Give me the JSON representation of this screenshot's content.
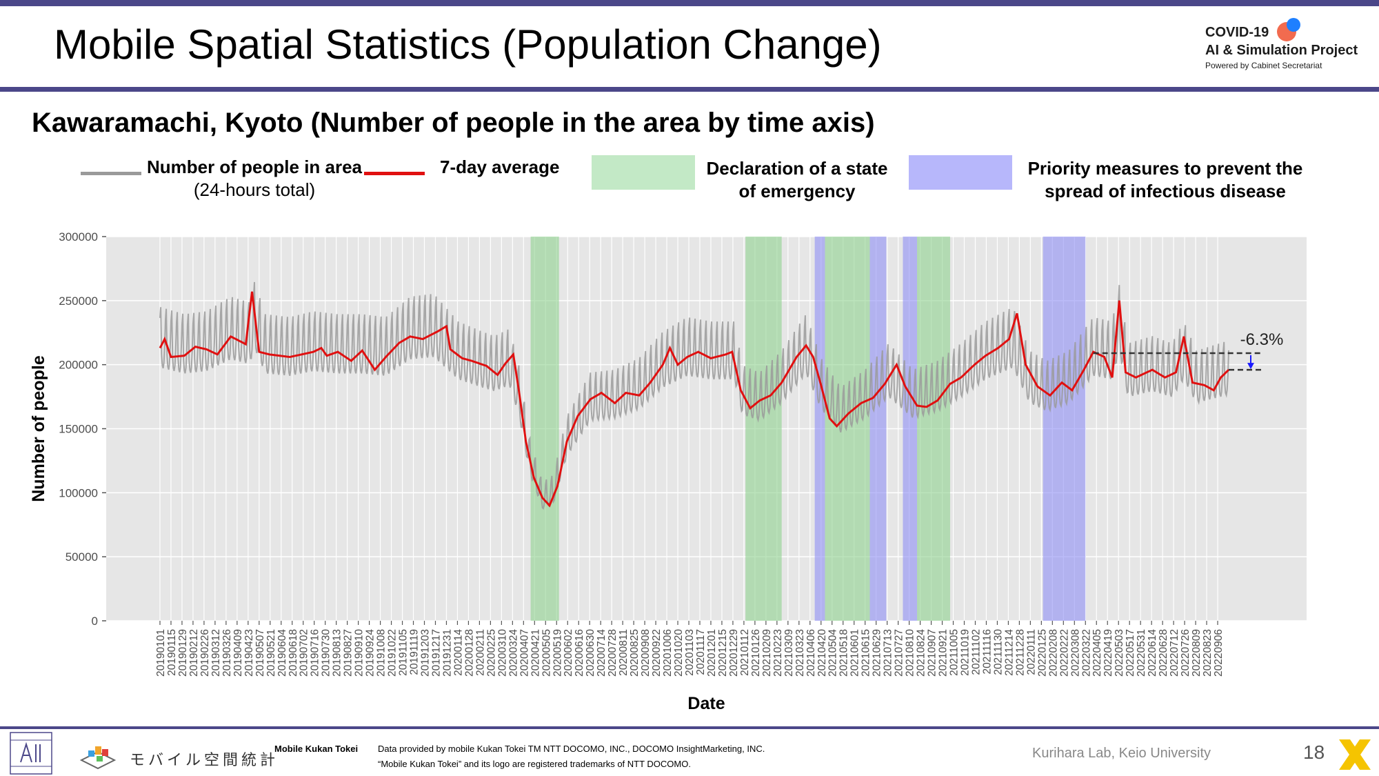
{
  "header": {
    "title": "Mobile Spatial Statistics (Population Change)",
    "logo": {
      "line1": "COVID-19",
      "line2": "AI & Simulation Project",
      "line3": "Powered by Cabinet Secretariat"
    }
  },
  "subtitle": "Kawaramachi, Kyoto (Number of people in the area by time axis)",
  "legend": {
    "people": {
      "line1": "Number of people in area",
      "line2": "(24-hours total)"
    },
    "avg": "7-day average",
    "emergency": {
      "line1": "Declaration of a state",
      "line2": "of emergency"
    },
    "priority": {
      "line1": "Priority measures to prevent the",
      "line2": "spread of infectious disease"
    }
  },
  "colors": {
    "daily": "#9a9a9a",
    "avg": "#e01010",
    "emergency": "#8fd28f",
    "priority": "#8f8ff5",
    "plot_bg": "#e6e6e6",
    "header_bar": "#4b4789"
  },
  "chart_data": {
    "type": "line",
    "xlabel": "Date",
    "ylabel": "Number of people",
    "ylim": [
      0,
      300000
    ],
    "yticks": [
      0,
      50000,
      100000,
      150000,
      200000,
      250000,
      300000
    ],
    "ytick_labels": [
      "0",
      "50000",
      "100000",
      "150000",
      "200000",
      "250000",
      "300000"
    ],
    "x_start": "2019-01-01",
    "x_end": "2022-09-20",
    "xtick_labels": [
      "20190101",
      "20190115",
      "20190129",
      "20190212",
      "20190226",
      "20190312",
      "20190326",
      "20190409",
      "20190423",
      "20190507",
      "20190521",
      "20190604",
      "20190618",
      "20190702",
      "20190716",
      "20190730",
      "20190813",
      "20190827",
      "20190910",
      "20190924",
      "20191008",
      "20191022",
      "20191105",
      "20191119",
      "20191203",
      "20191217",
      "20191231",
      "20200114",
      "20200128",
      "20200211",
      "20200225",
      "20200310",
      "20200324",
      "20200407",
      "20200421",
      "20200505",
      "20200519",
      "20200602",
      "20200616",
      "20200630",
      "20200714",
      "20200728",
      "20200811",
      "20200825",
      "20200908",
      "20200922",
      "20201006",
      "20201020",
      "20201103",
      "20201117",
      "20201201",
      "20201215",
      "20201229",
      "20210112",
      "20210126",
      "20210209",
      "20210223",
      "20210309",
      "20210323",
      "20210406",
      "20210420",
      "20210504",
      "20210518",
      "20210601",
      "20210615",
      "20210629",
      "20210713",
      "20210727",
      "20210810",
      "20210824",
      "20210907",
      "20210921",
      "20211005",
      "20211019",
      "20211102",
      "20211116",
      "20211130",
      "20211214",
      "20211228",
      "20220111",
      "20220125",
      "20220208",
      "20220222",
      "20220308",
      "20220322",
      "20220405",
      "20220419",
      "20220503",
      "20220517",
      "20220531",
      "20220614",
      "20220628",
      "20220712",
      "20220726",
      "20220809",
      "20220823",
      "20220906"
    ],
    "series": [
      {
        "name": "Number of people in area (24-hours total)",
        "kind": "daily",
        "anchors": [
          [
            "2019-01-01",
            215000
          ],
          [
            "2019-02-01",
            210000
          ],
          [
            "2019-03-01",
            212000
          ],
          [
            "2019-04-01",
            222000
          ],
          [
            "2019-04-25",
            218000
          ],
          [
            "2019-05-01",
            232000
          ],
          [
            "2019-05-15",
            210000
          ],
          [
            "2019-06-15",
            208000
          ],
          [
            "2019-07-15",
            212000
          ],
          [
            "2019-08-15",
            210000
          ],
          [
            "2019-09-15",
            210000
          ],
          [
            "2019-10-15",
            208000
          ],
          [
            "2019-11-15",
            222000
          ],
          [
            "2019-12-15",
            224000
          ],
          [
            "2020-01-15",
            205000
          ],
          [
            "2020-02-15",
            198000
          ],
          [
            "2020-03-01",
            195000
          ],
          [
            "2020-03-20",
            200000
          ],
          [
            "2020-04-01",
            175000
          ],
          [
            "2020-04-15",
            125000
          ],
          [
            "2020-05-01",
            95000
          ],
          [
            "2020-05-15",
            100000
          ],
          [
            "2020-06-01",
            140000
          ],
          [
            "2020-07-01",
            170000
          ],
          [
            "2020-08-01",
            172000
          ],
          [
            "2020-09-01",
            180000
          ],
          [
            "2020-10-01",
            198000
          ],
          [
            "2020-11-01",
            208000
          ],
          [
            "2020-12-01",
            205000
          ],
          [
            "2020-12-31",
            205000
          ],
          [
            "2021-01-10",
            175000
          ],
          [
            "2021-02-01",
            170000
          ],
          [
            "2021-03-01",
            185000
          ],
          [
            "2021-04-01",
            210000
          ],
          [
            "2021-04-20",
            180000
          ],
          [
            "2021-05-15",
            160000
          ],
          [
            "2021-06-15",
            172000
          ],
          [
            "2021-07-15",
            190000
          ],
          [
            "2021-08-15",
            172000
          ],
          [
            "2021-09-15",
            178000
          ],
          [
            "2021-10-15",
            190000
          ],
          [
            "2021-11-15",
            205000
          ],
          [
            "2021-12-20",
            215000
          ],
          [
            "2022-01-10",
            185000
          ],
          [
            "2022-02-01",
            178000
          ],
          [
            "2022-03-01",
            185000
          ],
          [
            "2022-04-01",
            208000
          ],
          [
            "2022-04-25",
            205000
          ],
          [
            "2022-05-04",
            230000
          ],
          [
            "2022-05-15",
            190000
          ],
          [
            "2022-06-15",
            195000
          ],
          [
            "2022-07-10",
            190000
          ],
          [
            "2022-07-25",
            205000
          ],
          [
            "2022-08-10",
            185000
          ],
          [
            "2022-09-20",
            192000
          ]
        ]
      },
      {
        "name": "7-day average",
        "kind": "avg",
        "anchors": [
          [
            "2019-01-01",
            213000
          ],
          [
            "2019-01-07",
            220000
          ],
          [
            "2019-01-15",
            206000
          ],
          [
            "2019-02-01",
            207000
          ],
          [
            "2019-02-15",
            214000
          ],
          [
            "2019-03-01",
            212000
          ],
          [
            "2019-03-15",
            208000
          ],
          [
            "2019-04-01",
            222000
          ],
          [
            "2019-04-20",
            216000
          ],
          [
            "2019-04-28",
            257000
          ],
          [
            "2019-05-07",
            210000
          ],
          [
            "2019-05-20",
            208000
          ],
          [
            "2019-06-15",
            206000
          ],
          [
            "2019-07-15",
            210000
          ],
          [
            "2019-07-25",
            213000
          ],
          [
            "2019-08-01",
            207000
          ],
          [
            "2019-08-15",
            210000
          ],
          [
            "2019-09-01",
            203000
          ],
          [
            "2019-09-15",
            211000
          ],
          [
            "2019-10-01",
            196000
          ],
          [
            "2019-10-15",
            206000
          ],
          [
            "2019-11-01",
            217000
          ],
          [
            "2019-11-15",
            222000
          ],
          [
            "2019-12-01",
            220000
          ],
          [
            "2019-12-20",
            226000
          ],
          [
            "2019-12-31",
            230000
          ],
          [
            "2020-01-05",
            212000
          ],
          [
            "2020-01-20",
            205000
          ],
          [
            "2020-02-01",
            203000
          ],
          [
            "2020-02-20",
            199000
          ],
          [
            "2020-03-05",
            192000
          ],
          [
            "2020-03-15",
            201000
          ],
          [
            "2020-03-25",
            208000
          ],
          [
            "2020-04-01",
            180000
          ],
          [
            "2020-04-10",
            140000
          ],
          [
            "2020-04-20",
            112000
          ],
          [
            "2020-05-01",
            96000
          ],
          [
            "2020-05-10",
            90000
          ],
          [
            "2020-05-20",
            105000
          ],
          [
            "2020-06-01",
            140000
          ],
          [
            "2020-06-15",
            160000
          ],
          [
            "2020-07-01",
            173000
          ],
          [
            "2020-07-15",
            178000
          ],
          [
            "2020-08-01",
            170000
          ],
          [
            "2020-08-15",
            178000
          ],
          [
            "2020-09-01",
            176000
          ],
          [
            "2020-09-15",
            186000
          ],
          [
            "2020-10-01",
            200000
          ],
          [
            "2020-10-10",
            213000
          ],
          [
            "2020-10-20",
            200000
          ],
          [
            "2020-11-01",
            206000
          ],
          [
            "2020-11-15",
            210000
          ],
          [
            "2020-12-01",
            205000
          ],
          [
            "2020-12-20",
            208000
          ],
          [
            "2020-12-28",
            210000
          ],
          [
            "2021-01-08",
            180000
          ],
          [
            "2021-01-20",
            166000
          ],
          [
            "2021-02-01",
            172000
          ],
          [
            "2021-02-15",
            176000
          ],
          [
            "2021-03-01",
            186000
          ],
          [
            "2021-03-20",
            206000
          ],
          [
            "2021-04-01",
            215000
          ],
          [
            "2021-04-10",
            206000
          ],
          [
            "2021-04-20",
            184000
          ],
          [
            "2021-05-01",
            158000
          ],
          [
            "2021-05-10",
            152000
          ],
          [
            "2021-05-25",
            162000
          ],
          [
            "2021-06-10",
            170000
          ],
          [
            "2021-06-25",
            174000
          ],
          [
            "2021-07-10",
            185000
          ],
          [
            "2021-07-25",
            200000
          ],
          [
            "2021-08-05",
            183000
          ],
          [
            "2021-08-20",
            168000
          ],
          [
            "2021-09-01",
            167000
          ],
          [
            "2021-09-15",
            172000
          ],
          [
            "2021-10-01",
            185000
          ],
          [
            "2021-10-15",
            190000
          ],
          [
            "2021-11-01",
            200000
          ],
          [
            "2021-11-15",
            207000
          ],
          [
            "2021-12-01",
            213000
          ],
          [
            "2021-12-15",
            220000
          ],
          [
            "2021-12-25",
            240000
          ],
          [
            "2022-01-05",
            200000
          ],
          [
            "2022-01-20",
            183000
          ],
          [
            "2022-02-05",
            176000
          ],
          [
            "2022-02-20",
            186000
          ],
          [
            "2022-03-05",
            180000
          ],
          [
            "2022-03-20",
            196000
          ],
          [
            "2022-04-01",
            210000
          ],
          [
            "2022-04-15",
            206000
          ],
          [
            "2022-04-25",
            190000
          ],
          [
            "2022-05-04",
            250000
          ],
          [
            "2022-05-12",
            194000
          ],
          [
            "2022-05-25",
            190000
          ],
          [
            "2022-06-15",
            196000
          ],
          [
            "2022-07-01",
            190000
          ],
          [
            "2022-07-15",
            194000
          ],
          [
            "2022-07-25",
            222000
          ],
          [
            "2022-08-05",
            186000
          ],
          [
            "2022-08-20",
            184000
          ],
          [
            "2022-09-01",
            180000
          ],
          [
            "2022-09-10",
            190000
          ],
          [
            "2022-09-20",
            196000
          ]
        ]
      }
    ],
    "bands": [
      {
        "type": "emergency",
        "start": "2020-04-16",
        "end": "2020-05-21"
      },
      {
        "type": "emergency",
        "start": "2021-01-14",
        "end": "2021-02-28"
      },
      {
        "type": "priority",
        "start": "2021-04-12",
        "end": "2021-04-24"
      },
      {
        "type": "emergency",
        "start": "2021-04-25",
        "end": "2021-06-20"
      },
      {
        "type": "priority",
        "start": "2021-06-21",
        "end": "2021-07-11"
      },
      {
        "type": "priority",
        "start": "2021-08-02",
        "end": "2021-08-19"
      },
      {
        "type": "emergency",
        "start": "2021-08-20",
        "end": "2021-09-30"
      },
      {
        "type": "priority",
        "start": "2022-01-27",
        "end": "2022-03-21"
      }
    ],
    "annotation": {
      "text": "-6.3%",
      "from_value": 209000,
      "to_value": 196000,
      "ref_start": "2022-04-01",
      "ref_end": "2022-09-20"
    }
  },
  "footer": {
    "brand_jp": "モバイル空間統計",
    "brand_en": "Mobile Kukan Tokei",
    "credit1": "Data provided by mobile Kukan Tokei TM NTT DOCOMO, INC., DOCOMO InsightMarketing, INC.",
    "credit2": "“Mobile Kukan Tokei” and its logo are registered trademarks of NTT DOCOMO.",
    "lab": "Kurihara Lab, Keio University",
    "page": "18"
  }
}
